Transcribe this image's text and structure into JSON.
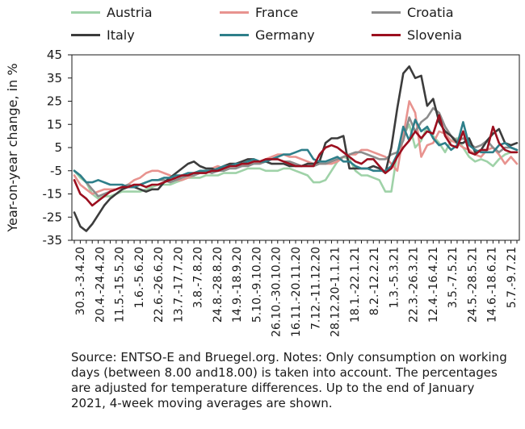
{
  "chart_data": {
    "type": "line",
    "ylabel": "Year-on-year change, in %",
    "xlabel": "",
    "ylim": [
      -35,
      45
    ],
    "yticks": [
      45,
      35,
      25,
      15,
      5,
      -5,
      -15,
      -25,
      -35
    ],
    "grid": false,
    "legend_position": "top",
    "x_tick_labels": [
      "30.3.-3.4.20",
      "20.4.-24.4.20",
      "11.5.-15.5.20",
      "1.6.-5.6.20",
      "22.6.-26.6.20",
      "13.7.-17.7.20",
      "3.8.-7.8.20",
      "24.8.-28.8.20",
      "14.9.-18.9.20",
      "5.10.-9.10.20",
      "26.10.-30.10.20",
      "16.11.-20.11.20",
      "7.12.-11.12.20",
      "28.12.20-1.1.21",
      "18.1.-22.1.21",
      "8.2.-12.2.21",
      "1.3.-5.3.21",
      "22.3.-26.3.21",
      "12.4.-16.4.21",
      "3.5.-7.5.21",
      "24.5.-28.5.21",
      "14.6.-18.6.21",
      "5.7.-9.7.21"
    ],
    "series": [
      {
        "name": "Austria",
        "color": "#9fd2a8",
        "values": [
          -5,
          -8,
          -10,
          -15,
          -17,
          -16,
          -16,
          -15,
          -14,
          -14,
          -14,
          -14,
          -13,
          -12,
          -11,
          -11,
          -11,
          -10,
          -9,
          -8,
          -8,
          -8,
          -7,
          -7,
          -7,
          -6,
          -6,
          -6,
          -5,
          -4,
          -4,
          -4,
          -5,
          -5,
          -5,
          -4,
          -4,
          -5,
          -6,
          -7,
          -10,
          -10,
          -9,
          -5,
          -1,
          1,
          0,
          -5,
          -7,
          -7,
          -8,
          -9,
          -14,
          -14,
          3,
          10,
          15,
          5,
          8,
          14,
          10,
          7,
          3,
          8,
          9,
          5,
          1,
          -1,
          0,
          -1,
          -3,
          0,
          2,
          3,
          3
        ]
      },
      {
        "name": "France",
        "color": "#e8938f",
        "values": [
          -7,
          -11,
          -13,
          -15,
          -14,
          -13,
          -13,
          -13,
          -12,
          -11,
          -9,
          -8,
          -6,
          -5,
          -5,
          -6,
          -7,
          -9,
          -9,
          -8,
          -7,
          -6,
          -6,
          -4,
          -3,
          -4,
          -3,
          -3,
          -3,
          -2,
          -1,
          -1,
          0,
          1,
          2,
          2,
          1,
          1,
          0,
          -1,
          -2,
          -2,
          -2,
          -2,
          -1,
          1,
          2,
          2,
          4,
          4,
          3,
          2,
          1,
          -2,
          -5,
          10,
          25,
          20,
          1,
          6,
          7,
          12,
          11,
          8,
          7,
          5,
          4,
          2,
          1,
          4,
          5,
          2,
          -2,
          1,
          -2
        ]
      },
      {
        "name": "Croatia",
        "color": "#8c8c8c",
        "values": [
          -5,
          -7,
          -10,
          -13,
          -16,
          -15,
          -14,
          -13,
          -12,
          -11,
          -12,
          -11,
          -10,
          -9,
          -9,
          -9,
          -10,
          -9,
          -8,
          -7,
          -7,
          -6,
          -5,
          -6,
          -5,
          -5,
          -4,
          -4,
          -3,
          -3,
          -2,
          -2,
          -1,
          0,
          0,
          -1,
          -1,
          -2,
          -3,
          -3,
          -3,
          -2,
          -2,
          -1,
          0,
          1,
          2,
          3,
          3,
          2,
          1,
          0,
          0,
          2,
          3,
          8,
          18,
          12,
          16,
          18,
          22,
          20,
          14,
          10,
          8,
          9,
          7,
          5,
          6,
          8,
          5,
          3,
          5,
          5,
          4
        ]
      },
      {
        "name": "Italy",
        "color": "#3c3c3c",
        "values": [
          -23,
          -29,
          -31,
          -28,
          -24,
          -20,
          -17,
          -15,
          -13,
          -12,
          -12,
          -13,
          -14,
          -13,
          -13,
          -10,
          -8,
          -6,
          -4,
          -2,
          -1,
          -3,
          -4,
          -4,
          -5,
          -3,
          -2,
          -2,
          -1,
          0,
          0,
          -1,
          -1,
          -2,
          -2,
          -2,
          -3,
          -3,
          -3,
          -2,
          -2,
          -1,
          7,
          9,
          9,
          10,
          -4,
          -4,
          -4,
          -4,
          -3,
          -4,
          -6,
          5,
          22,
          37,
          40,
          35,
          36,
          23,
          26,
          16,
          12,
          10,
          7,
          7,
          9,
          3,
          4,
          8,
          11,
          13,
          7,
          6,
          7
        ]
      },
      {
        "name": "Germany",
        "color": "#2e7f8a",
        "values": [
          -5,
          -7,
          -10,
          -10,
          -9,
          -10,
          -11,
          -11,
          -11,
          -12,
          -12,
          -11,
          -10,
          -9,
          -9,
          -8,
          -8,
          -7,
          -7,
          -6,
          -6,
          -5,
          -5,
          -5,
          -4,
          -3,
          -3,
          -2,
          -2,
          -1,
          0,
          -1,
          -1,
          0,
          1,
          2,
          2,
          3,
          4,
          4,
          0,
          -1,
          -1,
          0,
          1,
          -1,
          -1,
          -3,
          -4,
          -4,
          -5,
          -5,
          -5,
          -3,
          2,
          14,
          8,
          17,
          12,
          14,
          9,
          6,
          7,
          4,
          6,
          16,
          6,
          4,
          3,
          3,
          3,
          6,
          7,
          5,
          4
        ]
      },
      {
        "name": "Slovenia",
        "color": "#9c0f1f",
        "values": [
          -9,
          -15,
          -17,
          -20,
          -18,
          -16,
          -14,
          -13,
          -12,
          -12,
          -11,
          -11,
          -12,
          -11,
          -11,
          -10,
          -9,
          -8,
          -7,
          -7,
          -6,
          -6,
          -6,
          -5,
          -5,
          -4,
          -3,
          -3,
          -2,
          -2,
          -1,
          -1,
          0,
          0,
          0,
          -1,
          -2,
          -3,
          -3,
          -3,
          -3,
          2,
          5,
          6,
          5,
          3,
          1,
          -1,
          -2,
          0,
          0,
          -3,
          -6,
          -4,
          1,
          5,
          8,
          12,
          9,
          12,
          11,
          19,
          10,
          6,
          5,
          12,
          3,
          2,
          4,
          4,
          14,
          7,
          4,
          3,
          3
        ]
      }
    ]
  },
  "note": {
    "text": "Source: ENTSO-E and Bruegel.org. Notes: Only consumption on working days (between 8.00 and18.00) is taken into account. The percentages are adjusted for temperature differences. Up to the end of January 2021, 4-week moving averages are shown."
  }
}
